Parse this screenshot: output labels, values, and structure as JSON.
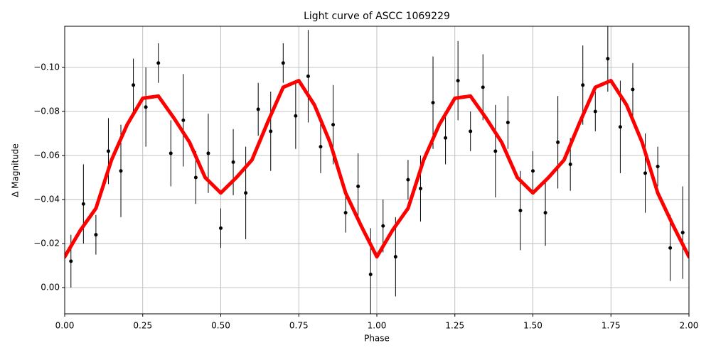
{
  "chart_data": {
    "type": "line",
    "title": "Light curve of ASCC 1069229",
    "xlabel": "Phase",
    "ylabel": "Δ Magnitude",
    "xlim": [
      0,
      2
    ],
    "ylim": [
      0.0119,
      -0.1187
    ],
    "xticks": [
      {
        "value": 0,
        "label": "0.00"
      },
      {
        "value": 0.25,
        "label": "0.25"
      },
      {
        "value": 0.5,
        "label": "0.50"
      },
      {
        "value": 0.75,
        "label": "0.75"
      },
      {
        "value": 1,
        "label": "1.00"
      },
      {
        "value": 1.25,
        "label": "1.25"
      },
      {
        "value": 1.5,
        "label": "1.50"
      },
      {
        "value": 1.75,
        "label": "1.75"
      },
      {
        "value": 2,
        "label": "2.00"
      }
    ],
    "yticks": [
      {
        "value": -0.1,
        "label": "−0.10"
      },
      {
        "value": -0.08,
        "label": "−0.08"
      },
      {
        "value": -0.06,
        "label": "−0.06"
      },
      {
        "value": -0.04,
        "label": "−0.04"
      },
      {
        "value": -0.02,
        "label": "−0.02"
      },
      {
        "value": 0,
        "label": "0.00"
      }
    ],
    "grid": true,
    "series": [
      {
        "type": "scatter",
        "color": "#000000",
        "x": [
          0.02,
          0.06,
          0.1,
          0.14,
          0.18,
          0.22,
          0.26,
          0.3,
          0.34,
          0.38,
          0.42,
          0.46,
          0.5,
          0.54,
          0.58,
          0.62,
          0.66,
          0.7,
          0.74,
          0.78,
          0.82,
          0.86,
          0.9,
          0.94,
          0.98,
          1.02,
          1.06,
          1.1,
          1.14,
          1.18,
          1.22,
          1.26,
          1.3,
          1.34,
          1.38,
          1.42,
          1.46,
          1.5,
          1.54,
          1.58,
          1.62,
          1.66,
          1.7,
          1.74,
          1.78,
          1.82,
          1.86,
          1.9,
          1.94,
          1.98
        ],
        "values": [
          -0.012,
          -0.038,
          -0.024,
          -0.062,
          -0.053,
          -0.092,
          -0.082,
          -0.102,
          -0.061,
          -0.076,
          -0.05,
          -0.061,
          -0.027,
          -0.057,
          -0.043,
          -0.081,
          -0.071,
          -0.102,
          -0.078,
          -0.096,
          -0.064,
          -0.074,
          -0.034,
          -0.046,
          -0.006,
          -0.028,
          -0.014,
          -0.049,
          -0.045,
          -0.084,
          -0.068,
          -0.094,
          -0.071,
          -0.091,
          -0.062,
          -0.075,
          -0.035,
          -0.053,
          -0.034,
          -0.066,
          -0.056,
          -0.092,
          -0.08,
          -0.104,
          -0.073,
          -0.09,
          -0.052,
          -0.055,
          -0.018,
          -0.025
        ],
        "errors": [
          0.012,
          0.018,
          0.009,
          0.015,
          0.021,
          0.012,
          0.018,
          0.009,
          0.015,
          0.021,
          0.012,
          0.018,
          0.009,
          0.015,
          0.021,
          0.012,
          0.018,
          0.009,
          0.015,
          0.021,
          0.012,
          0.018,
          0.009,
          0.015,
          0.021,
          0.012,
          0.018,
          0.009,
          0.015,
          0.021,
          0.012,
          0.018,
          0.009,
          0.015,
          0.021,
          0.012,
          0.018,
          0.009,
          0.015,
          0.021,
          0.012,
          0.018,
          0.009,
          0.015,
          0.021,
          0.012,
          0.018,
          0.009,
          0.015,
          0.021
        ]
      },
      {
        "type": "line",
        "color": "#ff0000",
        "x": [
          0,
          0.05,
          0.1,
          0.15,
          0.2,
          0.25,
          0.3,
          0.35,
          0.4,
          0.45,
          0.5,
          0.55,
          0.6,
          0.65,
          0.7,
          0.75,
          0.8,
          0.85,
          0.9,
          0.95,
          1.0,
          1.05,
          1.1,
          1.15,
          1.2,
          1.25,
          1.3,
          1.35,
          1.4,
          1.45,
          1.5,
          1.55,
          1.6,
          1.65,
          1.7,
          1.75,
          1.8,
          1.85,
          1.9,
          1.95,
          2.0
        ],
        "values": [
          -0.014,
          -0.026,
          -0.036,
          -0.058,
          -0.074,
          -0.086,
          -0.087,
          -0.077,
          -0.066,
          -0.05,
          -0.043,
          -0.05,
          -0.058,
          -0.075,
          -0.091,
          -0.094,
          -0.083,
          -0.066,
          -0.043,
          -0.028,
          -0.014,
          -0.026,
          -0.036,
          -0.058,
          -0.074,
          -0.086,
          -0.087,
          -0.077,
          -0.066,
          -0.05,
          -0.043,
          -0.05,
          -0.058,
          -0.075,
          -0.091,
          -0.094,
          -0.083,
          -0.066,
          -0.043,
          -0.028,
          -0.014
        ]
      }
    ]
  }
}
